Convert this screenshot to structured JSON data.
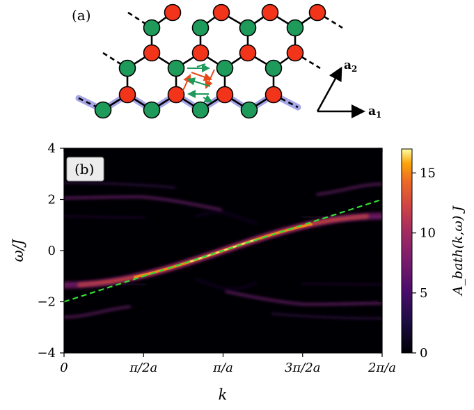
{
  "panel_a": {
    "label": "(a)",
    "vectors": {
      "a1_main": "a",
      "a1_sub": "1",
      "a2_main": "a",
      "a2_sub": "2"
    },
    "colors": {
      "site_a": "#f2341b",
      "site_b": "#1e9a5a",
      "bond": "#000000",
      "highlight": "#5b5bd6",
      "loop_red": "#e64a19",
      "loop_green": "#1e9a5a"
    }
  },
  "panel_b": {
    "label": "(b)",
    "chart_data": {
      "type": "heatmap",
      "xlabel": "k",
      "ylabel": "ω/J",
      "xlim": [
        0,
        6.2832
      ],
      "ylim": [
        -4,
        4
      ],
      "x_ticks": [
        {
          "value": 0,
          "label": "0"
        },
        {
          "value": 1.5708,
          "label": "π/2a"
        },
        {
          "value": 3.1416,
          "label": "π/a"
        },
        {
          "value": 4.7124,
          "label": "3π/2a"
        },
        {
          "value": 6.2832,
          "label": "2π/a"
        }
      ],
      "y_ticks": [
        {
          "value": 4,
          "label": "4"
        },
        {
          "value": 2,
          "label": "2"
        },
        {
          "value": 0,
          "label": "0"
        },
        {
          "value": -2,
          "label": "−2"
        },
        {
          "value": -4,
          "label": "−4"
        }
      ],
      "colorbar": {
        "label": "A_bath(k,ω) J",
        "range": [
          0,
          17
        ],
        "ticks": [
          {
            "value": 0,
            "label": "0"
          },
          {
            "value": 5,
            "label": "5"
          },
          {
            "value": 10,
            "label": "10"
          },
          {
            "value": 15,
            "label": "15"
          }
        ]
      },
      "dashed_line": {
        "x": [
          0,
          6.2832
        ],
        "y": [
          -2,
          2
        ],
        "color": "#33dd33"
      }
    }
  }
}
